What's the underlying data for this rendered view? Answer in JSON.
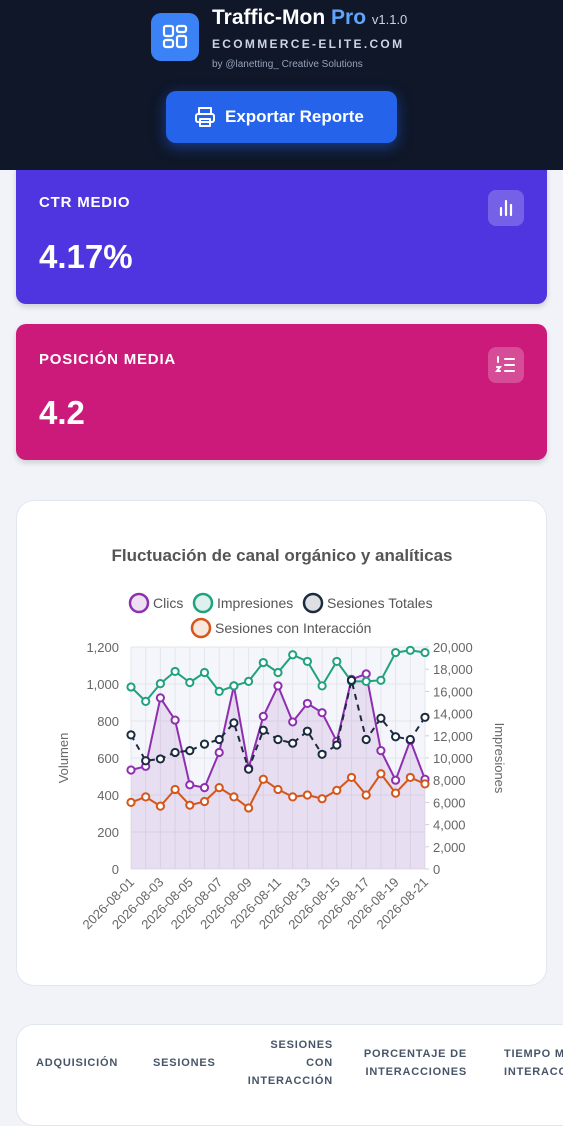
{
  "header": {
    "title": "Traffic-Mon",
    "title_suffix": "Pro",
    "version": "v1.1.0",
    "domain": "ECOMMERCE-ELITE.COM",
    "byline": "by @lanetting_ Creative Solutions",
    "button": "Exportar Reporte"
  },
  "stats": [
    {
      "label": "CTR MEDIO",
      "value": "4.17%"
    },
    {
      "label": "POSICIÓN MEDIA",
      "value": "4.2"
    }
  ],
  "chart_data": {
    "type": "line",
    "title": "Fluctuación de canal orgánico y analíticas",
    "y_label": "Volumen",
    "y2_label": "Impresiones",
    "categories": [
      "2026-08-01",
      null,
      "2026-08-03",
      null,
      "2026-08-05",
      null,
      "2026-08-07",
      null,
      "2026-08-09",
      null,
      "2026-08-11",
      null,
      "2026-08-13",
      null,
      "2026-08-15",
      null,
      "2026-08-17",
      null,
      "2026-08-19",
      null,
      "2026-08-21"
    ],
    "ylim": [
      0,
      1200
    ],
    "yticks": [
      0,
      200,
      400,
      600,
      800,
      {
        "value": 1000,
        "label": "1,000"
      },
      {
        "value": 1200,
        "label": "1,200"
      }
    ],
    "y2lim": [
      0,
      20000
    ],
    "y2ticks": [
      0,
      {
        "value": 2000,
        "label": "2,000"
      },
      {
        "value": 4000,
        "label": "4,000"
      },
      {
        "value": 6000,
        "label": "6,000"
      },
      {
        "value": 8000,
        "label": "8,000"
      },
      {
        "value": 10000,
        "label": "10,000"
      },
      {
        "value": 12000,
        "label": "12,000"
      },
      {
        "value": 14000,
        "label": "14,000"
      },
      {
        "value": 16000,
        "label": "16,000"
      },
      {
        "value": 18000,
        "label": "18,000"
      },
      {
        "value": 20000,
        "label": "20,000"
      }
    ],
    "grid": true,
    "series": [
      {
        "name": "Clics",
        "color": "#8e2fb0",
        "fill": true,
        "values": [
          535,
          555,
          925,
          805,
          455,
          440,
          630,
          990,
          545,
          825,
          990,
          795,
          895,
          845,
          690,
          1025,
          1055,
          640,
          480,
          695,
          485
        ]
      },
      {
        "name": "Impresiones",
        "color": "#20a27e",
        "axis": "y2",
        "values": [
          16400,
          15100,
          16700,
          17800,
          16800,
          17700,
          16000,
          16500,
          16900,
          18600,
          17700,
          19300,
          18700,
          16500,
          18700,
          16900,
          16900,
          17000,
          19500,
          19700,
          19500
        ]
      },
      {
        "name": "Sesiones Totales",
        "color": "#1b2a3f",
        "dashed": true,
        "values": [
          725,
          585,
          595,
          630,
          640,
          675,
          700,
          790,
          540,
          750,
          700,
          680,
          745,
          620,
          670,
          1020,
          700,
          815,
          715,
          700,
          820
        ]
      },
      {
        "name": "Sesiones con Interacción",
        "color": "#d4561a",
        "values": [
          360,
          390,
          340,
          430,
          345,
          365,
          440,
          390,
          330,
          485,
          430,
          390,
          400,
          380,
          425,
          495,
          400,
          515,
          410,
          495,
          460
        ]
      }
    ]
  },
  "table": {
    "columns": [
      "ADQUISICIÓN",
      "SESIONES",
      "SESIONES CON INTERACCIÓN",
      "PORCENTAJE DE INTERACCIONES",
      "TIEMPO MEDIO DE INTERACCIÓN"
    ]
  }
}
